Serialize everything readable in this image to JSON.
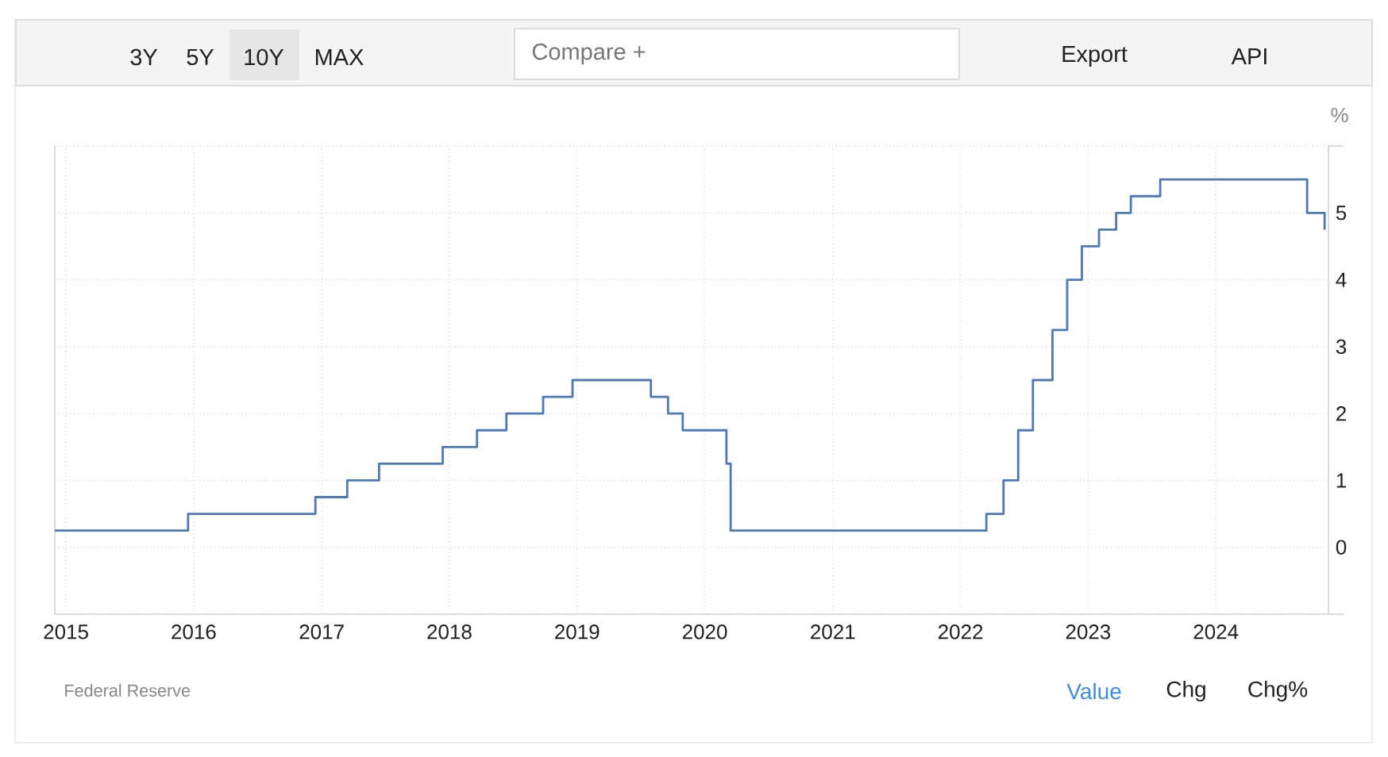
{
  "chart_data": {
    "type": "step",
    "ylabel": "%",
    "x": [
      "2014-11-30",
      "2015-12-16",
      "2016-12-14",
      "2017-03-15",
      "2017-06-14",
      "2017-12-13",
      "2018-03-21",
      "2018-06-13",
      "2018-09-26",
      "2018-12-19",
      "2019-07-31",
      "2019-09-18",
      "2019-10-30",
      "2020-03-03",
      "2020-03-15",
      "2022-03-16",
      "2022-05-04",
      "2022-06-15",
      "2022-07-27",
      "2022-09-21",
      "2022-11-02",
      "2022-12-14",
      "2023-02-01",
      "2023-03-22",
      "2023-05-03",
      "2023-07-26",
      "2024-09-18",
      "2024-11-07"
    ],
    "values": [
      0.25,
      0.5,
      0.75,
      1,
      1.25,
      1.5,
      1.75,
      2,
      2.25,
      2.5,
      2.25,
      2,
      1.75,
      1.25,
      0.25,
      0.5,
      1,
      1.75,
      2.5,
      3.25,
      4,
      4.5,
      4.75,
      5,
      5.25,
      5.5,
      5,
      4.75
    ],
    "color": "#4e79b9",
    "xlim": [
      "2014-11-30",
      "2024-11-18"
    ],
    "xticks": [
      "2015",
      "2016",
      "2017",
      "2018",
      "2019",
      "2020",
      "2021",
      "2022",
      "2023",
      "2024"
    ],
    "ylim": [
      -1,
      6
    ],
    "yticks": [
      {
        "value": -1,
        "label": null
      },
      0,
      1,
      2,
      3,
      4,
      5,
      {
        "value": 6,
        "label": null
      }
    ],
    "grid": true,
    "annotations": [
      "3Y",
      "5Y",
      "10Y",
      "MAX",
      "Compare +",
      "Export",
      "API",
      "Federal Reserve",
      "Value",
      "Chg",
      "Chg%"
    ]
  }
}
